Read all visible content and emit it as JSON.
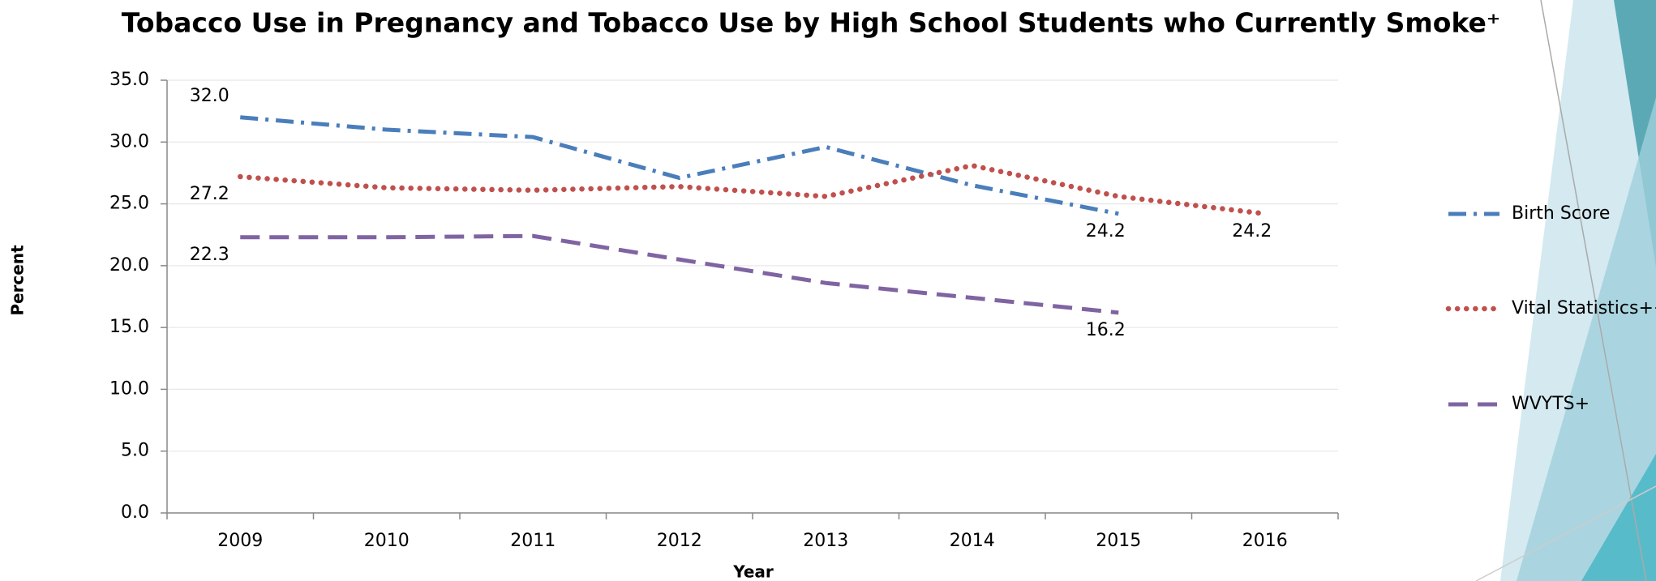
{
  "chart_data": {
    "type": "line",
    "title": "Tobacco Use in Pregnancy and Tobacco Use by High School Students who Currently Smoke⁺",
    "x_label": "Year",
    "y_label": "Percent",
    "categories": [
      "2009",
      "2010",
      "2011",
      "2012",
      "2013",
      "2014",
      "2015",
      "2016"
    ],
    "series": [
      {
        "name": "Birth Score",
        "color": "#4a7ebb",
        "values": [
          32.0,
          31.0,
          30.4,
          27.1,
          29.6,
          26.5,
          24.2,
          null
        ],
        "value_labels": [
          "32.0",
          null,
          null,
          null,
          null,
          null,
          "24.2",
          null
        ]
      },
      {
        "name": "Vital Statistics++",
        "color": "#c0504d",
        "values": [
          27.2,
          26.3,
          26.1,
          26.4,
          25.6,
          28.1,
          25.6,
          24.2
        ],
        "value_labels": [
          "27.2",
          null,
          null,
          null,
          null,
          null,
          null,
          "24.2"
        ]
      },
      {
        "name": "WVYTS+",
        "color": "#8064a2",
        "values": [
          22.3,
          22.3,
          22.4,
          20.5,
          18.6,
          17.4,
          16.2,
          null
        ],
        "value_labels": [
          "22.3",
          null,
          null,
          null,
          null,
          null,
          "16.2",
          null
        ]
      }
    ],
    "ylim": [
      0,
      35
    ],
    "yticks": [
      {
        "value": 0,
        "label": "0.0"
      },
      {
        "value": 5,
        "label": "5.0"
      },
      {
        "value": 10,
        "label": "10.0"
      },
      {
        "value": 15,
        "label": "15.0"
      },
      {
        "value": 20,
        "label": "20.0"
      },
      {
        "value": 25,
        "label": "25.0"
      },
      {
        "value": 30,
        "label": "30.0"
      },
      {
        "value": 35,
        "label": "35.0"
      }
    ],
    "grid": true,
    "legend": "right"
  }
}
